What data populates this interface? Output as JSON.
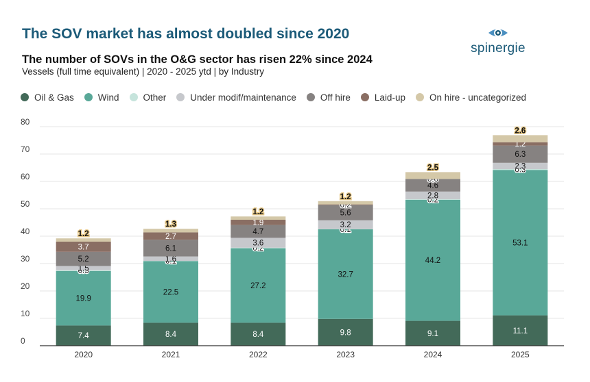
{
  "header": {
    "headline": "The SOV market has almost doubled since 2020",
    "subtitle": "The number of SOVs in the O&G sector has risen 22% since 2024",
    "caption": "Vessels (full time equivalent) | 2020 - 2025 ytd | by Industry",
    "logo_text": "spinergie"
  },
  "colors": {
    "oil_gas": "#436a59",
    "wind": "#59a898",
    "other": "#c6e4dc",
    "under_modif": "#c6c8cc",
    "off_hire": "#868281",
    "laid_up": "#8a6e63",
    "on_hire_uncategorized": "#d4c8a8",
    "headline": "#1b5a78"
  },
  "legend": [
    {
      "label": "Oil & Gas",
      "color": "#436a59"
    },
    {
      "label": "Wind",
      "color": "#59a898"
    },
    {
      "label": "Other",
      "color": "#c6e4dc"
    },
    {
      "label": "Under modif/maintenance",
      "color": "#c6c8cc"
    },
    {
      "label": "Off hire",
      "color": "#868281"
    },
    {
      "label": "Laid-up",
      "color": "#8a6e63"
    },
    {
      "label": "On hire - uncategorized",
      "color": "#d4c8a8"
    }
  ],
  "chart_data": {
    "type": "bar",
    "stacked": true,
    "categories": [
      "2020",
      "2021",
      "2022",
      "2023",
      "2024",
      "2025"
    ],
    "ylim": [
      0,
      80
    ],
    "yticks": [
      0,
      10,
      20,
      30,
      40,
      50,
      60,
      70,
      80
    ],
    "grid": true,
    "legend_position": "top",
    "series": [
      {
        "name": "Oil & Gas",
        "values": [
          7.4,
          8.4,
          8.4,
          9.8,
          9.1,
          11.1
        ],
        "labels": [
          "7.4",
          "8.4",
          "8.4",
          "9.8",
          "9.1",
          "11.1"
        ]
      },
      {
        "name": "Wind",
        "values": [
          19.9,
          22.5,
          27.2,
          32.7,
          44.2,
          53.1
        ],
        "labels": [
          "19.9",
          "22.5",
          "27.2",
          "32.7",
          "44.2",
          "53.1"
        ]
      },
      {
        "name": "Other",
        "values": [
          0.3,
          0.1,
          0.2,
          0.1,
          0.2,
          0.3
        ],
        "labels": [
          "0.3",
          "0.1",
          "0.2",
          "0.1",
          "0.2",
          "0.3"
        ]
      },
      {
        "name": "Under modif/maintenance",
        "values": [
          1.5,
          1.6,
          3.6,
          3.2,
          2.8,
          2.3
        ],
        "labels": [
          "1.5",
          "1.6",
          "3.6",
          "3.2",
          "2.8",
          "2.3"
        ]
      },
      {
        "name": "Off hire",
        "values": [
          5.2,
          6.1,
          4.7,
          5.6,
          4.6,
          6.3
        ],
        "labels": [
          "5.2",
          "6.1",
          "4.7",
          "5.6",
          "4.6",
          "6.3"
        ]
      },
      {
        "name": "Laid-up",
        "values": [
          3.7,
          2.7,
          1.9,
          0.2,
          0.0,
          1.2
        ],
        "labels": [
          "3.7",
          "2.7",
          "1.9",
          "0.2",
          "0.0",
          "1.2"
        ]
      },
      {
        "name": "On hire - uncategorized",
        "values": [
          1.2,
          1.3,
          1.2,
          1.2,
          2.5,
          2.6
        ],
        "labels": [
          "1.2",
          "1.3",
          "1.2",
          "1.2",
          "2.5",
          "2.6"
        ]
      }
    ]
  }
}
